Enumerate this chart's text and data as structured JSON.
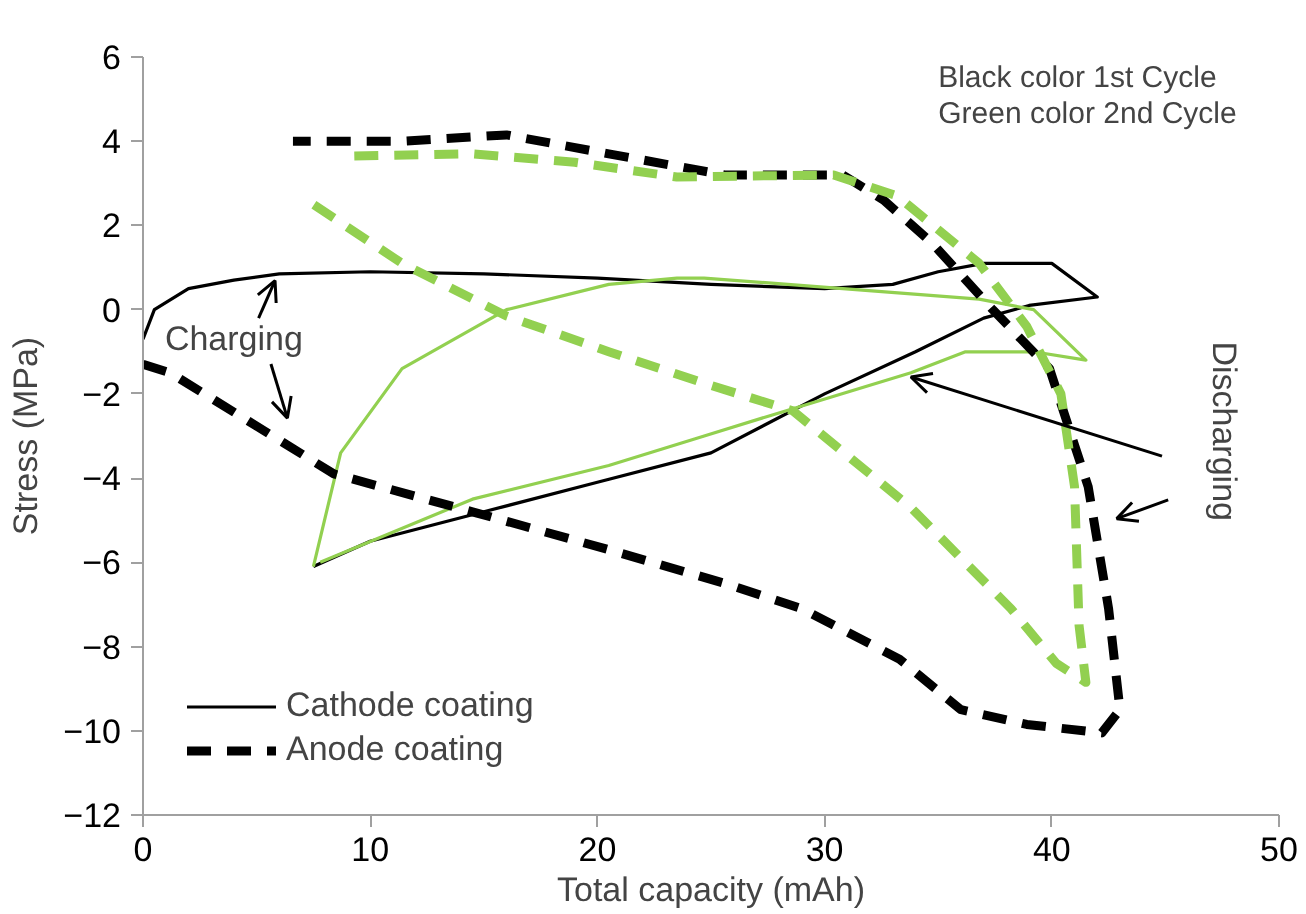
{
  "chart_data": {
    "type": "line",
    "xlabel": "Total capacity (mAh)",
    "ylabel": "Stress (MPa)",
    "xlim": [
      0,
      50
    ],
    "xticks": [
      0,
      10,
      20,
      30,
      40,
      50
    ],
    "ylim": [
      -12,
      6
    ],
    "yticks": [
      -12,
      -10,
      -8,
      -6,
      -4,
      -2,
      0,
      2,
      4,
      6
    ],
    "grid": false,
    "legend": "bottom left",
    "marker": "none",
    "annotations": [
      "Black color 1st Cycle",
      "Green color 2nd Cycle",
      "Charging",
      {
        "text": "Discharging",
        "x": 33.8,
        "y": -1.6
      }
    ],
    "series": [
      {
        "name": "Cathode coating",
        "color": "#000000",
        "line_style": "solid",
        "x": [
          0,
          0.5,
          2,
          4,
          6,
          10,
          15,
          20,
          25,
          30,
          33,
          35,
          37,
          40,
          42,
          39,
          37,
          34,
          30,
          25,
          20,
          15,
          10,
          7.5
        ],
        "values": [
          -0.7,
          0,
          0.5,
          0.7,
          0.85,
          0.9,
          0.85,
          0.75,
          0.6,
          0.5,
          0.6,
          0.9,
          1.1,
          1.1,
          0.3,
          0.1,
          -0.2,
          -1.0,
          -2.0,
          -3.4,
          -4.1,
          -4.8,
          -5.5,
          -6.1
        ]
      },
      {
        "color": "#92d050",
        "line_style": "solid",
        "x": [
          7.5,
          8.7,
          11.4,
          16,
          20.5,
          23.5,
          24.7,
          30.8,
          36.8,
          39.2,
          41.5,
          39.2,
          36.2,
          33.8,
          27.7,
          24.7,
          20.5,
          14.5,
          7.8
        ],
        "values": [
          -6.1,
          -3.4,
          -1.4,
          0,
          0.6,
          0.75,
          0.75,
          0.5,
          0.25,
          0,
          -1.2,
          -1.0,
          -1.0,
          -1.5,
          -2.5,
          -3.0,
          -3.7,
          -4.5,
          -6.0
        ]
      },
      {
        "name": "Anode coating",
        "color": "#000000",
        "line_style": "dashed",
        "x": [
          0,
          1.2,
          6.3,
          8.4,
          14.5,
          20.5,
          25.6,
          29,
          33.3,
          36,
          38.9,
          42.2,
          43,
          42.5,
          41.6,
          39.9,
          37.4,
          34.7,
          32.6,
          30.8,
          25.6,
          20.5,
          16,
          11.4,
          6.6
        ],
        "values": [
          -1.3,
          -1.5,
          -3.2,
          -3.9,
          -4.8,
          -5.7,
          -6.5,
          -7.1,
          -8.3,
          -9.5,
          -9.85,
          -10.05,
          -9.5,
          -7.1,
          -4.2,
          -1.4,
          0,
          1.6,
          2.6,
          3.2,
          3.2,
          3.7,
          4.15,
          4.0,
          4.0
        ]
      },
      {
        "color": "#92d050",
        "line_style": "dashed",
        "x": [
          9.3,
          14.5,
          19,
          23.5,
          30.4,
          33.2,
          36.8,
          38.9,
          40.4,
          41,
          41.2,
          41.5,
          40.2,
          38.2,
          33.8,
          28.6,
          25,
          20.5,
          16,
          11.4,
          7.5
        ],
        "values": [
          3.65,
          3.7,
          3.5,
          3.15,
          3.2,
          2.7,
          1.1,
          -0.4,
          -2.0,
          -4.2,
          -7.5,
          -8.85,
          -8.4,
          -7.1,
          -4.7,
          -2.4,
          -1.8,
          -1.0,
          -0.15,
          1.1,
          2.5
        ]
      }
    ]
  }
}
